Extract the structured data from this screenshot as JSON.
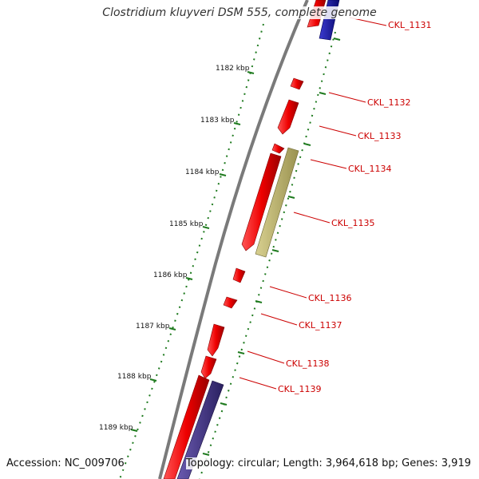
{
  "title": "Clostridium kluyveri DSM 555, complete genome",
  "accession": "Accession: NC_009706",
  "summary": "Topology: circular; Length: 3,964,618 bp; Genes: 3,919",
  "colors": {
    "backbone": "#7a7a7a",
    "gene_forward": "#ee1111",
    "gene_reverse": "#aa0000",
    "gene_blue": "#1a1a99",
    "gene_purple": "#4a3a8a",
    "gene_olive": "#b8b070",
    "ruler": "#1e7a1e",
    "label": "#cc0000"
  },
  "kbp_ticks": [
    "1182 kbp",
    "1183 kbp",
    "1184 kbp",
    "1185 kbp",
    "1186 kbp",
    "1187 kbp",
    "1188 kbp",
    "1189 kbp"
  ],
  "gene_labels": [
    "CKL_1131",
    "CKL_1132",
    "CKL_1133",
    "CKL_1134",
    "CKL_1135",
    "CKL_1136",
    "CKL_1137",
    "CKL_1138",
    "CKL_1139"
  ]
}
